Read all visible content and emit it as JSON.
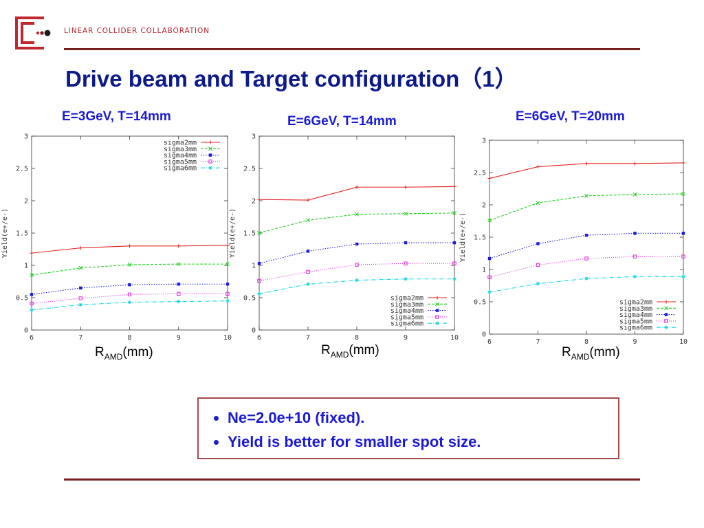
{
  "header": {
    "org_name": "LINEAR COLLIDER COLLABORATION"
  },
  "page_title": "Drive beam and Target configuration（1）",
  "colors": {
    "title": "#0d1b8a",
    "accent": "#7a1d1f",
    "logo": "#c0282e",
    "note_text": "#1a1ad6",
    "note_border": "#a4494a"
  },
  "icons": {
    "logo": "lcc-logo-icon"
  },
  "notes": [
    "Ne=2.0e+10 (fixed).",
    "Yield is better for smaller spot size."
  ],
  "chart_data": [
    {
      "type": "line",
      "title": "E=3GeV, T=14mm",
      "xlabel_main": "R",
      "xlabel_sub": "AMD",
      "xlabel_unit": "(mm)",
      "ylabel": "Yield(e+/e-)",
      "x": [
        6,
        7,
        8,
        9,
        10
      ],
      "xlim": [
        6,
        10
      ],
      "ylim": [
        0,
        3
      ],
      "xticks": [
        "6",
        "7",
        "8",
        "9",
        "10"
      ],
      "yticks": [
        "0",
        "0.5",
        "1",
        "1.5",
        "2",
        "2.5",
        "3"
      ],
      "grid": false,
      "legend_position": "top-right",
      "series": [
        {
          "name": "sigma2mm",
          "color": "#e3221e",
          "marker": "plus",
          "values": [
            1.19,
            1.27,
            1.3,
            1.3,
            1.31
          ]
        },
        {
          "name": "sigma3mm",
          "color": "#1fd11f",
          "marker": "x",
          "values": [
            0.85,
            0.96,
            1.01,
            1.02,
            1.02
          ]
        },
        {
          "name": "sigma4mm",
          "color": "#1a1ae0",
          "marker": "square-filled",
          "values": [
            0.55,
            0.65,
            0.7,
            0.71,
            0.71
          ]
        },
        {
          "name": "sigma5mm",
          "color": "#e026e0",
          "marker": "square-open",
          "values": [
            0.41,
            0.49,
            0.55,
            0.56,
            0.56
          ]
        },
        {
          "name": "sigma6mm",
          "color": "#17d6e0",
          "marker": "star",
          "values": [
            0.31,
            0.39,
            0.43,
            0.44,
            0.45
          ]
        }
      ]
    },
    {
      "type": "line",
      "title": "E=6GeV, T=14mm",
      "xlabel_main": "R",
      "xlabel_sub": "AMD",
      "xlabel_unit": "(mm)",
      "ylabel": "Yield(e+/e-)",
      "x": [
        6,
        7,
        8,
        9,
        10
      ],
      "xlim": [
        6,
        10
      ],
      "ylim": [
        0,
        3
      ],
      "xticks": [
        "6",
        "7",
        "8",
        "9",
        "10"
      ],
      "yticks": [
        "0",
        "0.5",
        "1",
        "1.5",
        "2",
        "2.5",
        "3"
      ],
      "grid": false,
      "legend_position": "bottom-right",
      "series": [
        {
          "name": "sigma2mm",
          "color": "#e3221e",
          "marker": "plus",
          "values": [
            2.02,
            2.01,
            2.21,
            2.21,
            2.22
          ]
        },
        {
          "name": "sigma3mm",
          "color": "#1fd11f",
          "marker": "x",
          "values": [
            1.5,
            1.7,
            1.79,
            1.8,
            1.81
          ]
        },
        {
          "name": "sigma4mm",
          "color": "#1a1ae0",
          "marker": "square-filled",
          "values": [
            1.03,
            1.22,
            1.33,
            1.35,
            1.35
          ]
        },
        {
          "name": "sigma5mm",
          "color": "#e026e0",
          "marker": "square-open",
          "values": [
            0.76,
            0.9,
            1.01,
            1.03,
            1.03
          ]
        },
        {
          "name": "sigma6mm",
          "color": "#17d6e0",
          "marker": "star",
          "values": [
            0.56,
            0.71,
            0.77,
            0.79,
            0.79
          ]
        }
      ]
    },
    {
      "type": "line",
      "title": "E=6GeV, T=20mm",
      "xlabel_main": "R",
      "xlabel_sub": "AMD",
      "xlabel_unit": "(mm)",
      "ylabel": "Yield(e+/e-)",
      "x": [
        6,
        7,
        8,
        9,
        10
      ],
      "xlim": [
        6,
        10
      ],
      "ylim": [
        0,
        3
      ],
      "xticks": [
        "6",
        "7",
        "8",
        "9",
        "10"
      ],
      "yticks": [
        "0",
        "0.5",
        "1",
        "1.5",
        "2",
        "2.5",
        "3"
      ],
      "grid": false,
      "legend_position": "bottom-right",
      "series": [
        {
          "name": "sigma2mm",
          "color": "#e3221e",
          "marker": "plus",
          "values": [
            2.41,
            2.59,
            2.64,
            2.64,
            2.65
          ]
        },
        {
          "name": "sigma3mm",
          "color": "#1fd11f",
          "marker": "x",
          "values": [
            1.76,
            2.03,
            2.14,
            2.16,
            2.17
          ]
        },
        {
          "name": "sigma4mm",
          "color": "#1a1ae0",
          "marker": "square-filled",
          "values": [
            1.17,
            1.4,
            1.53,
            1.56,
            1.56
          ]
        },
        {
          "name": "sigma5mm",
          "color": "#e026e0",
          "marker": "square-open",
          "values": [
            0.88,
            1.07,
            1.17,
            1.2,
            1.2
          ]
        },
        {
          "name": "sigma6mm",
          "color": "#17d6e0",
          "marker": "star",
          "values": [
            0.65,
            0.78,
            0.86,
            0.89,
            0.89
          ]
        }
      ]
    }
  ]
}
